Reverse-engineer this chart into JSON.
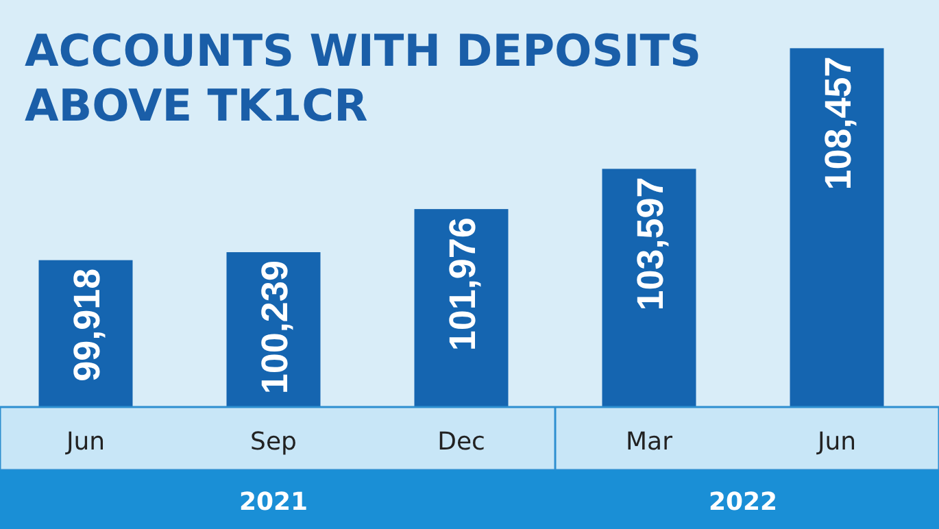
{
  "chart_data": {
    "type": "bar",
    "title": "ACCOUNTS WITH DEPOSITS\nABOVE TK1CR",
    "categories": [
      "Jun",
      "Sep",
      "Dec",
      "Mar",
      "Jun"
    ],
    "values": [
      99918,
      100239,
      101976,
      103597,
      108457
    ],
    "color": "#1565b0",
    "value_labels": [
      "99,918",
      "100,239",
      "101,976",
      "103,597",
      "108,457"
    ],
    "ylim": [
      94000,
      110400
    ],
    "tick_labels": "x",
    "annotations": [
      "2021",
      "2022"
    ]
  }
}
